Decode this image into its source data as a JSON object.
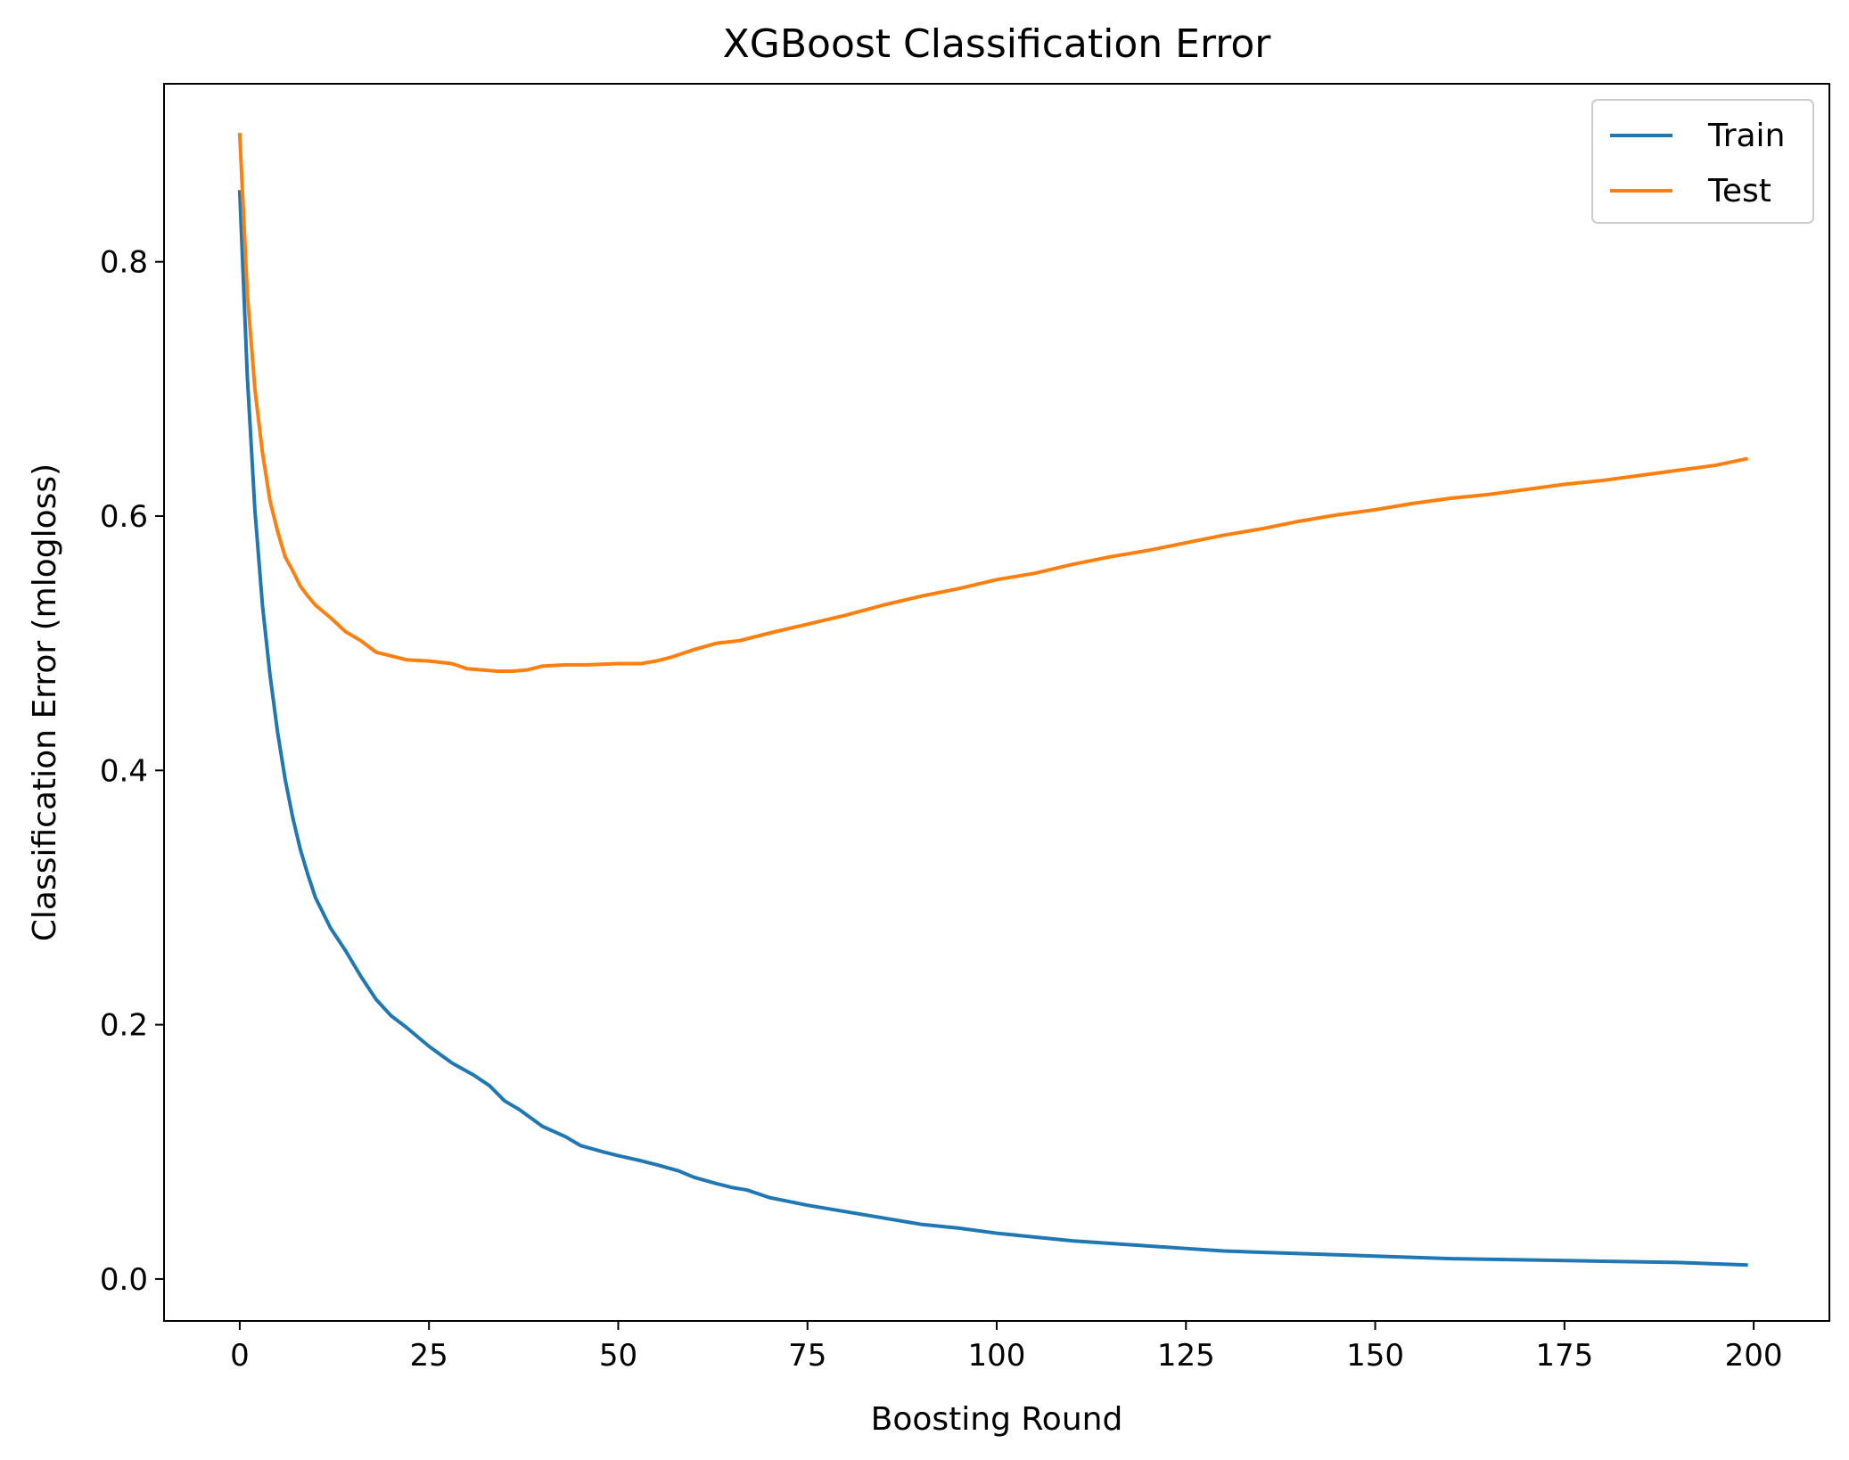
{
  "chart_data": {
    "type": "line",
    "title": "XGBoost Classification Error",
    "xlabel": "Boosting Round",
    "ylabel": "Classification Error (mlogloss)",
    "xlim": [
      -10,
      210
    ],
    "ylim": [
      -0.033,
      0.94
    ],
    "xticks": [
      0,
      25,
      50,
      75,
      100,
      125,
      150,
      175,
      200
    ],
    "yticks": [
      0.0,
      0.2,
      0.4,
      0.6,
      0.8
    ],
    "ytick_labels": [
      "0.0",
      "0.2",
      "0.4",
      "0.6",
      "0.8"
    ],
    "legend_position": "top-right",
    "grid": false,
    "series": [
      {
        "name": "Train",
        "color": "#1f77b4",
        "points": [
          [
            0,
            0.855
          ],
          [
            1,
            0.71
          ],
          [
            2,
            0.605
          ],
          [
            3,
            0.53
          ],
          [
            4,
            0.475
          ],
          [
            5,
            0.43
          ],
          [
            6,
            0.393
          ],
          [
            7,
            0.363
          ],
          [
            8,
            0.338
          ],
          [
            9,
            0.318
          ],
          [
            10,
            0.3
          ],
          [
            12,
            0.276
          ],
          [
            14,
            0.258
          ],
          [
            16,
            0.238
          ],
          [
            18,
            0.22
          ],
          [
            20,
            0.207
          ],
          [
            22,
            0.198
          ],
          [
            25,
            0.183
          ],
          [
            28,
            0.17
          ],
          [
            31,
            0.16
          ],
          [
            33,
            0.152
          ],
          [
            35,
            0.14
          ],
          [
            37,
            0.133
          ],
          [
            40,
            0.12
          ],
          [
            43,
            0.112
          ],
          [
            45,
            0.105
          ],
          [
            48,
            0.1
          ],
          [
            50,
            0.097
          ],
          [
            53,
            0.093
          ],
          [
            55,
            0.09
          ],
          [
            58,
            0.085
          ],
          [
            60,
            0.08
          ],
          [
            63,
            0.075
          ],
          [
            65,
            0.072
          ],
          [
            67,
            0.07
          ],
          [
            70,
            0.064
          ],
          [
            75,
            0.058
          ],
          [
            80,
            0.053
          ],
          [
            85,
            0.048
          ],
          [
            90,
            0.043
          ],
          [
            95,
            0.04
          ],
          [
            100,
            0.036
          ],
          [
            105,
            0.033
          ],
          [
            110,
            0.03
          ],
          [
            115,
            0.028
          ],
          [
            120,
            0.026
          ],
          [
            125,
            0.024
          ],
          [
            130,
            0.022
          ],
          [
            135,
            0.021
          ],
          [
            140,
            0.02
          ],
          [
            150,
            0.018
          ],
          [
            160,
            0.016
          ],
          [
            170,
            0.015
          ],
          [
            180,
            0.014
          ],
          [
            190,
            0.013
          ],
          [
            199,
            0.011
          ]
        ]
      },
      {
        "name": "Test",
        "color": "#ff7f0e",
        "points": [
          [
            0,
            0.9
          ],
          [
            1,
            0.775
          ],
          [
            2,
            0.7
          ],
          [
            3,
            0.65
          ],
          [
            4,
            0.612
          ],
          [
            5,
            0.588
          ],
          [
            6,
            0.568
          ],
          [
            7,
            0.557
          ],
          [
            8,
            0.545
          ],
          [
            9,
            0.537
          ],
          [
            10,
            0.53
          ],
          [
            12,
            0.52
          ],
          [
            14,
            0.509
          ],
          [
            16,
            0.502
          ],
          [
            18,
            0.493
          ],
          [
            20,
            0.49
          ],
          [
            22,
            0.487
          ],
          [
            25,
            0.486
          ],
          [
            28,
            0.484
          ],
          [
            30,
            0.48
          ],
          [
            32,
            0.479
          ],
          [
            34,
            0.478
          ],
          [
            36,
            0.478
          ],
          [
            38,
            0.479
          ],
          [
            40,
            0.482
          ],
          [
            43,
            0.483
          ],
          [
            46,
            0.483
          ],
          [
            50,
            0.484
          ],
          [
            53,
            0.484
          ],
          [
            55,
            0.486
          ],
          [
            57,
            0.489
          ],
          [
            60,
            0.495
          ],
          [
            63,
            0.5
          ],
          [
            66,
            0.502
          ],
          [
            70,
            0.508
          ],
          [
            75,
            0.515
          ],
          [
            80,
            0.522
          ],
          [
            85,
            0.53
          ],
          [
            90,
            0.537
          ],
          [
            95,
            0.543
          ],
          [
            100,
            0.55
          ],
          [
            105,
            0.555
          ],
          [
            110,
            0.562
          ],
          [
            115,
            0.568
          ],
          [
            120,
            0.573
          ],
          [
            125,
            0.579
          ],
          [
            130,
            0.585
          ],
          [
            135,
            0.59
          ],
          [
            140,
            0.596
          ],
          [
            145,
            0.601
          ],
          [
            150,
            0.605
          ],
          [
            155,
            0.61
          ],
          [
            160,
            0.614
          ],
          [
            165,
            0.617
          ],
          [
            170,
            0.621
          ],
          [
            175,
            0.625
          ],
          [
            180,
            0.628
          ],
          [
            185,
            0.632
          ],
          [
            190,
            0.636
          ],
          [
            195,
            0.64
          ],
          [
            199,
            0.645
          ]
        ]
      }
    ]
  }
}
